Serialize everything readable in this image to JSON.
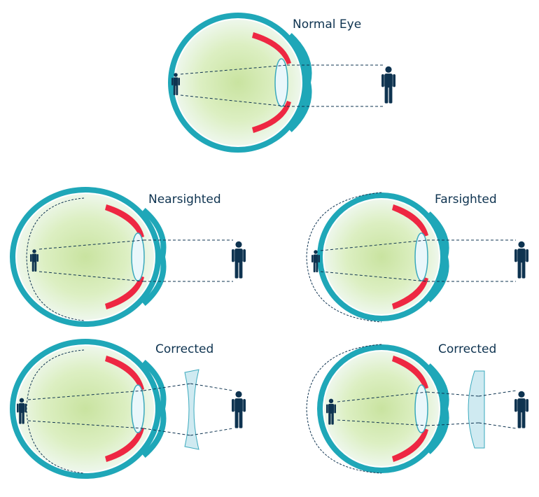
{
  "panels": [
    {
      "id": "normal",
      "title": "Normal Eye"
    },
    {
      "id": "nearsighted",
      "title": "Nearsighted"
    },
    {
      "id": "farsighted",
      "title": "Farsighted"
    },
    {
      "id": "near-corrected",
      "title": "Corrected"
    },
    {
      "id": "far-corrected",
      "title": "Corrected"
    }
  ],
  "colors": {
    "sclera": "#1fa7b8",
    "eye_fill_center": "#cfe6a8",
    "eye_fill_edge": "#eef7f3",
    "ciliary": "#ee2742",
    "lens": "#eaf7fb",
    "lens_stroke": "#3aa9bd",
    "figure": "#0e3350",
    "corrective_lens": "#cfeaf1",
    "text": "#0e3350"
  }
}
